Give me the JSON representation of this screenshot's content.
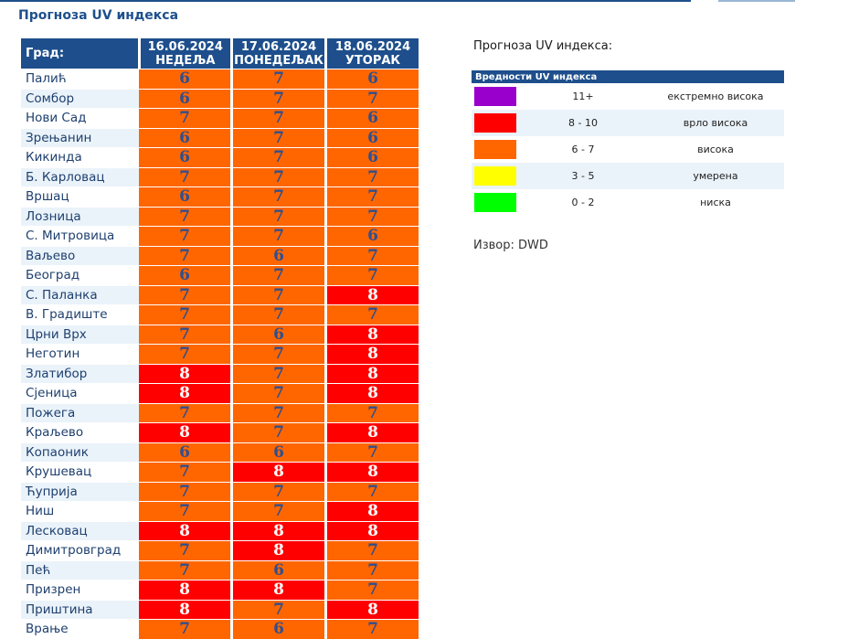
{
  "page": {
    "title": "Прогноза UV индекса"
  },
  "table": {
    "city_header": "Град:",
    "days": [
      {
        "date": "16.06.2024",
        "day": "НЕДЕЉА"
      },
      {
        "date": "17.06.2024",
        "day": "ПОНЕДЕЉАК"
      },
      {
        "date": "18.06.2024",
        "day": "УТОРАК"
      }
    ],
    "rows": [
      {
        "city": "Палић",
        "values": [
          6,
          7,
          6
        ]
      },
      {
        "city": "Сомбор",
        "values": [
          6,
          7,
          7
        ]
      },
      {
        "city": "Нови Сад",
        "values": [
          7,
          7,
          6
        ]
      },
      {
        "city": "Зрењанин",
        "values": [
          6,
          7,
          6
        ]
      },
      {
        "city": "Кикинда",
        "values": [
          6,
          7,
          6
        ]
      },
      {
        "city": "Б. Карловац",
        "values": [
          7,
          7,
          7
        ]
      },
      {
        "city": "Вршац",
        "values": [
          6,
          7,
          7
        ]
      },
      {
        "city": "Лозница",
        "values": [
          7,
          7,
          7
        ]
      },
      {
        "city": "С. Митровица",
        "values": [
          7,
          7,
          6
        ]
      },
      {
        "city": "Ваљево",
        "values": [
          7,
          6,
          7
        ]
      },
      {
        "city": "Београд",
        "values": [
          6,
          7,
          7
        ]
      },
      {
        "city": "С. Паланка",
        "values": [
          7,
          7,
          8
        ]
      },
      {
        "city": "В. Градиште",
        "values": [
          7,
          7,
          7
        ]
      },
      {
        "city": "Црни Врх",
        "values": [
          7,
          6,
          8
        ]
      },
      {
        "city": "Неготин",
        "values": [
          7,
          7,
          8
        ]
      },
      {
        "city": "Златибор",
        "values": [
          8,
          7,
          8
        ]
      },
      {
        "city": "Сјеница",
        "values": [
          8,
          7,
          8
        ]
      },
      {
        "city": "Пожега",
        "values": [
          7,
          7,
          7
        ]
      },
      {
        "city": "Краљево",
        "values": [
          8,
          7,
          8
        ]
      },
      {
        "city": "Копаоник",
        "values": [
          6,
          6,
          7
        ]
      },
      {
        "city": "Крушевац",
        "values": [
          7,
          8,
          8
        ]
      },
      {
        "city": "Ћуприја",
        "values": [
          7,
          7,
          7
        ]
      },
      {
        "city": "Ниш",
        "values": [
          7,
          7,
          8
        ]
      },
      {
        "city": "Лесковац",
        "values": [
          8,
          8,
          8
        ]
      },
      {
        "city": "Димитровград",
        "values": [
          7,
          8,
          7
        ]
      },
      {
        "city": "Пећ",
        "values": [
          7,
          6,
          7
        ]
      },
      {
        "city": "Призрен",
        "values": [
          8,
          8,
          7
        ]
      },
      {
        "city": "Приштина",
        "values": [
          8,
          7,
          8
        ]
      },
      {
        "city": "Врање",
        "values": [
          7,
          6,
          7
        ]
      }
    ]
  },
  "legend": {
    "title": "Прогноза UV индекса:",
    "header": "Вредности UV индекса",
    "items": [
      {
        "color": "#9900cc",
        "range": "11+",
        "label": "екстремно висока"
      },
      {
        "color": "#ff0000",
        "range": "8 - 10",
        "label": "врло висока"
      },
      {
        "color": "#ff6600",
        "range": "6 - 7",
        "label": "висока"
      },
      {
        "color": "#ffff00",
        "range": "3 - 5",
        "label": "умерена"
      },
      {
        "color": "#00ff00",
        "range": "0 - 2",
        "label": "ниска"
      }
    ]
  },
  "source": "Извор: DWD"
}
